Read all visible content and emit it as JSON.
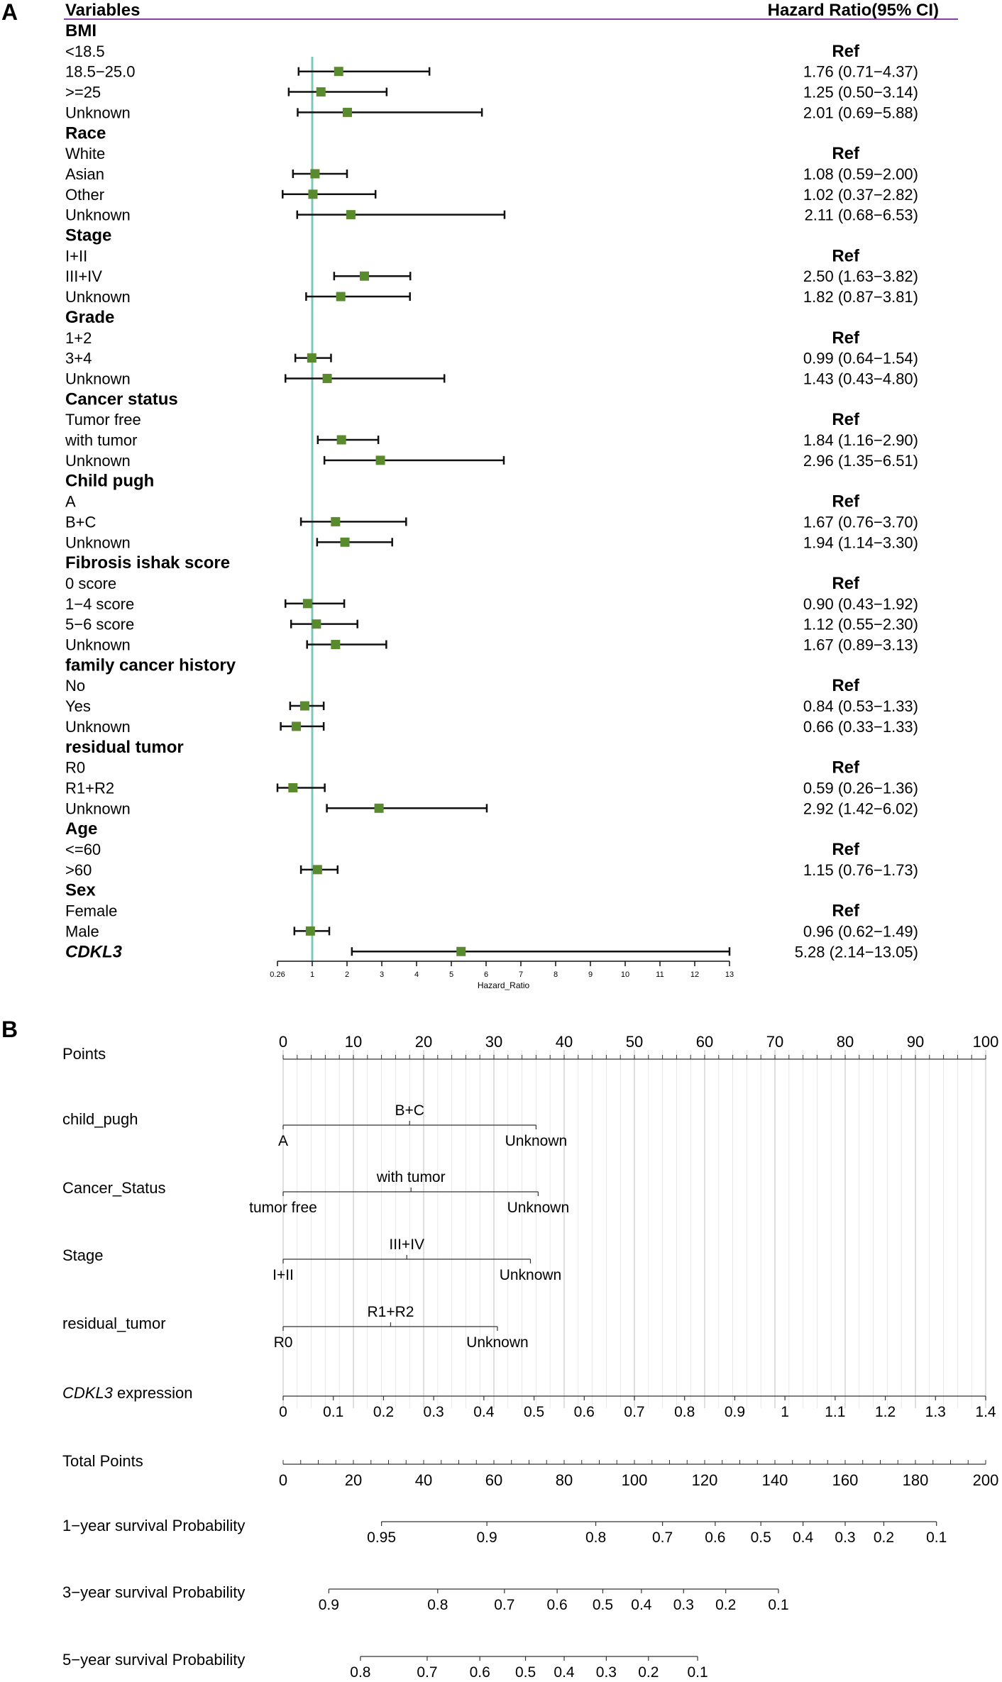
{
  "panels": {
    "a": {
      "label": "A"
    },
    "b": {
      "label": "B"
    }
  },
  "colors": {
    "marker": "#5a8a2e",
    "reference_line": "#7ec8b8",
    "header_rule": "#8b3fa8",
    "grid": "#d0d0d0"
  },
  "chart_data": [
    {
      "type": "scatter",
      "subtype": "forest_plot",
      "headers": {
        "variables": "Variables",
        "hr": "Hazard Ratio(95% CI)"
      },
      "xlabel": "Hazard_Ratio",
      "x_ticks": [
        "0.26",
        "1",
        "2",
        "3",
        "4",
        "5",
        "6",
        "7",
        "8",
        "9",
        "10",
        "11",
        "12",
        "13"
      ],
      "x_tick_values": [
        0.26,
        1,
        2,
        3,
        4,
        5,
        6,
        7,
        8,
        9,
        10,
        11,
        12,
        13
      ],
      "xlim": [
        0.26,
        13
      ],
      "reference_line": 1,
      "rows": [
        {
          "label": "BMI",
          "kind": "header"
        },
        {
          "label": "<18.5",
          "kind": "ref",
          "text": "Ref"
        },
        {
          "label": "18.5−25.0",
          "kind": "est",
          "hr": 1.76,
          "lo": 0.71,
          "hi": 4.37,
          "text": "1.76 (0.71−4.37)"
        },
        {
          "label": ">=25",
          "kind": "est",
          "hr": 1.25,
          "lo": 0.5,
          "hi": 3.14,
          "text": "1.25 (0.50−3.14)"
        },
        {
          "label": "Unknown",
          "kind": "est",
          "hr": 2.01,
          "lo": 0.69,
          "hi": 5.88,
          "text": "2.01 (0.69−5.88)"
        },
        {
          "label": "Race",
          "kind": "header"
        },
        {
          "label": "White",
          "kind": "ref",
          "text": "Ref"
        },
        {
          "label": "Asian",
          "kind": "est",
          "hr": 1.08,
          "lo": 0.59,
          "hi": 2.0,
          "text": "1.08 (0.59−2.00)"
        },
        {
          "label": "Other",
          "kind": "est",
          "hr": 1.02,
          "lo": 0.37,
          "hi": 2.82,
          "text": "1.02 (0.37−2.82)"
        },
        {
          "label": "Unknown",
          "kind": "est",
          "hr": 2.11,
          "lo": 0.68,
          "hi": 6.53,
          "text": "2.11 (0.68−6.53)"
        },
        {
          "label": "Stage",
          "kind": "header"
        },
        {
          "label": "I+II",
          "kind": "ref",
          "text": "Ref"
        },
        {
          "label": "III+IV",
          "kind": "est",
          "hr": 2.5,
          "lo": 1.63,
          "hi": 3.82,
          "text": "2.50 (1.63−3.82)"
        },
        {
          "label": "Unknown",
          "kind": "est",
          "hr": 1.82,
          "lo": 0.87,
          "hi": 3.81,
          "text": "1.82 (0.87−3.81)"
        },
        {
          "label": "Grade",
          "kind": "header"
        },
        {
          "label": "1+2",
          "kind": "ref",
          "text": "Ref"
        },
        {
          "label": "3+4",
          "kind": "est",
          "hr": 0.99,
          "lo": 0.64,
          "hi": 1.54,
          "text": "0.99 (0.64−1.54)"
        },
        {
          "label": "Unknown",
          "kind": "est",
          "hr": 1.43,
          "lo": 0.43,
          "hi": 4.8,
          "text": "1.43 (0.43−4.80)"
        },
        {
          "label": "Cancer status",
          "kind": "header"
        },
        {
          "label": "Tumor free",
          "kind": "ref",
          "text": "Ref"
        },
        {
          "label": "with tumor",
          "kind": "est",
          "hr": 1.84,
          "lo": 1.16,
          "hi": 2.9,
          "text": "1.84 (1.16−2.90)"
        },
        {
          "label": "Unknown",
          "kind": "est",
          "hr": 2.96,
          "lo": 1.35,
          "hi": 6.51,
          "text": "2.96 (1.35−6.51)"
        },
        {
          "label": "Child pugh",
          "kind": "header"
        },
        {
          "label": "A",
          "kind": "ref",
          "text": "Ref"
        },
        {
          "label": "B+C",
          "kind": "est",
          "hr": 1.67,
          "lo": 0.76,
          "hi": 3.7,
          "text": "1.67 (0.76−3.70)"
        },
        {
          "label": "Unknown",
          "kind": "est",
          "hr": 1.94,
          "lo": 1.14,
          "hi": 3.3,
          "text": "1.94 (1.14−3.30)"
        },
        {
          "label": "Fibrosis ishak score",
          "kind": "header"
        },
        {
          "label": "0 score",
          "kind": "ref",
          "text": "Ref"
        },
        {
          "label": "1−4 score",
          "kind": "est",
          "hr": 0.9,
          "lo": 0.43,
          "hi": 1.92,
          "text": "0.90 (0.43−1.92)"
        },
        {
          "label": "5−6 score",
          "kind": "est",
          "hr": 1.12,
          "lo": 0.55,
          "hi": 2.3,
          "text": "1.12 (0.55−2.30)"
        },
        {
          "label": "Unknown",
          "kind": "est",
          "hr": 1.67,
          "lo": 0.89,
          "hi": 3.13,
          "text": "1.67 (0.89−3.13)"
        },
        {
          "label": "family cancer history",
          "kind": "header"
        },
        {
          "label": "No",
          "kind": "ref",
          "text": "Ref"
        },
        {
          "label": "Yes",
          "kind": "est",
          "hr": 0.84,
          "lo": 0.53,
          "hi": 1.33,
          "text": "0.84 (0.53−1.33)"
        },
        {
          "label": "Unknown",
          "kind": "est",
          "hr": 0.66,
          "lo": 0.33,
          "hi": 1.33,
          "text": "0.66 (0.33−1.33)"
        },
        {
          "label": "residual tumor",
          "kind": "header"
        },
        {
          "label": "R0",
          "kind": "ref",
          "text": "Ref"
        },
        {
          "label": "R1+R2",
          "kind": "est",
          "hr": 0.59,
          "lo": 0.26,
          "hi": 1.36,
          "text": "0.59 (0.26−1.36)"
        },
        {
          "label": "Unknown",
          "kind": "est",
          "hr": 2.92,
          "lo": 1.42,
          "hi": 6.02,
          "text": "2.92 (1.42−6.02)"
        },
        {
          "label": "Age",
          "kind": "header"
        },
        {
          "label": "<=60",
          "kind": "ref",
          "text": "Ref"
        },
        {
          "label": ">60",
          "kind": "est",
          "hr": 1.15,
          "lo": 0.76,
          "hi": 1.73,
          "text": "1.15 (0.76−1.73)"
        },
        {
          "label": "Sex",
          "kind": "header"
        },
        {
          "label": "Female",
          "kind": "ref",
          "text": "Ref"
        },
        {
          "label": "Male",
          "kind": "est",
          "hr": 0.96,
          "lo": 0.62,
          "hi": 1.49,
          "text": "0.96 (0.62−1.49)"
        },
        {
          "label": "CDKL3",
          "kind": "est_bold",
          "hr": 5.28,
          "lo": 2.14,
          "hi": 13.05,
          "text": "5.28 (2.14−13.05)"
        }
      ]
    },
    {
      "type": "table",
      "subtype": "nomogram",
      "points_range": [
        0,
        100
      ],
      "rows": [
        {
          "label": "Points",
          "kind": "points",
          "italic_part": "",
          "range": [
            0,
            100
          ],
          "major_ticks": [
            0,
            10,
            20,
            30,
            40,
            50,
            60,
            70,
            80,
            90,
            100
          ],
          "minor_step": 2
        },
        {
          "label": "child_pugh",
          "kind": "categorical",
          "italic_part": "",
          "levels": [
            {
              "text": "A",
              "points": 0,
              "side": "below"
            },
            {
              "text": "B+C",
              "points": 18,
              "side": "above"
            },
            {
              "text": "Unknown",
              "points": 36,
              "side": "below"
            }
          ]
        },
        {
          "label": "Cancer_Status",
          "kind": "categorical",
          "italic_part": "",
          "levels": [
            {
              "text": "tumor free",
              "points": 0,
              "side": "below"
            },
            {
              "text": "with tumor",
              "points": 18.2,
              "side": "above"
            },
            {
              "text": "Unknown",
              "points": 36.3,
              "side": "below"
            }
          ]
        },
        {
          "label": "Stage",
          "kind": "categorical",
          "italic_part": "",
          "levels": [
            {
              "text": "I+II",
              "points": 0,
              "side": "below"
            },
            {
              "text": "III+IV",
              "points": 17.6,
              "side": "above"
            },
            {
              "text": "Unknown",
              "points": 35.2,
              "side": "below"
            }
          ]
        },
        {
          "label": "residual_tumor",
          "kind": "categorical",
          "italic_part": "",
          "levels": [
            {
              "text": "R0",
              "points": 0,
              "side": "below"
            },
            {
              "text": "R1+R2",
              "points": 15.3,
              "side": "above"
            },
            {
              "text": "Unknown",
              "points": 30.5,
              "side": "below"
            }
          ]
        },
        {
          "label": " expression",
          "kind": "scale",
          "italic_part": "CDKL3",
          "value_at_zero": 0,
          "value_at_end": 1.4,
          "points_at_end": 100,
          "ticks": [
            "0",
            "0.1",
            "0.2",
            "0.3",
            "0.4",
            "0.5",
            "0.6",
            "0.7",
            "0.8",
            "0.9",
            "1",
            "1.1",
            "1.2",
            "1.3",
            "1.4"
          ]
        },
        {
          "label": "Total Points",
          "kind": "total",
          "italic_part": "",
          "range": [
            0,
            200
          ],
          "major_ticks": [
            "0",
            "20",
            "40",
            "60",
            "80",
            "100",
            "120",
            "140",
            "160",
            "180",
            "200"
          ],
          "minor_step": 5
        },
        {
          "label": "1−year survival Probability",
          "kind": "prob",
          "italic_part": "",
          "ticks": [
            {
              "text": "0.95",
              "total": 28
            },
            {
              "text": "0.9",
              "total": 58
            },
            {
              "text": "0.8",
              "total": 89
            },
            {
              "text": "0.7",
              "total": 108
            },
            {
              "text": "0.6",
              "total": 123
            },
            {
              "text": "0.5",
              "total": 136
            },
            {
              "text": "0.4",
              "total": 148
            },
            {
              "text": "0.3",
              "total": 160
            },
            {
              "text": "0.2",
              "total": 171
            },
            {
              "text": "0.1",
              "total": 186
            }
          ]
        },
        {
          "label": "3−year survival Probability",
          "kind": "prob",
          "italic_part": "",
          "ticks": [
            {
              "text": "0.9",
              "total": 13
            },
            {
              "text": "0.8",
              "total": 44
            },
            {
              "text": "0.7",
              "total": 63
            },
            {
              "text": "0.6",
              "total": 78
            },
            {
              "text": "0.5",
              "total": 91
            },
            {
              "text": "0.4",
              "total": 102
            },
            {
              "text": "0.3",
              "total": 114
            },
            {
              "text": "0.2",
              "total": 126
            },
            {
              "text": "0.1",
              "total": 141
            }
          ]
        },
        {
          "label": "5−year survival Probability",
          "kind": "prob",
          "italic_part": "",
          "ticks": [
            {
              "text": "0.8",
              "total": 22
            },
            {
              "text": "0.7",
              "total": 41
            },
            {
              "text": "0.6",
              "total": 56
            },
            {
              "text": "0.5",
              "total": 69
            },
            {
              "text": "0.4",
              "total": 80
            },
            {
              "text": "0.3",
              "total": 92
            },
            {
              "text": "0.2",
              "total": 104
            },
            {
              "text": "0.1",
              "total": 118
            }
          ]
        }
      ]
    }
  ]
}
